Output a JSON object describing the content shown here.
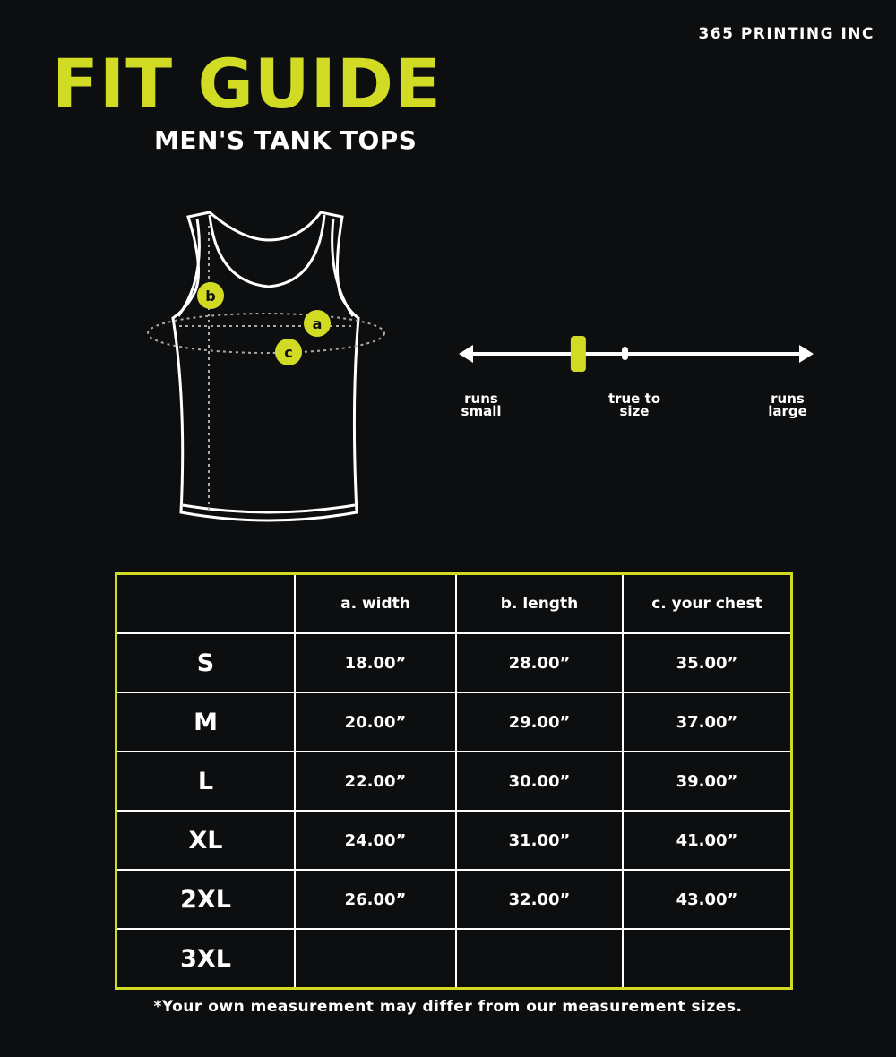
{
  "brand": "365 PRINTING INC",
  "title": "FIT GUIDE",
  "subtitle": "MEN'S TANK TOPS",
  "colors": {
    "accent": "#d1db24",
    "background": "#0c0e0f",
    "line": "#ffffff"
  },
  "diagram": {
    "markers": [
      "a",
      "b",
      "c"
    ]
  },
  "fit_scale": {
    "labels": {
      "small": [
        "runs",
        "small"
      ],
      "true": [
        "true to",
        "size"
      ],
      "large": [
        "runs",
        "large"
      ]
    },
    "fit_position_fraction": 0.33
  },
  "table": {
    "headers": [
      "",
      "a. width",
      "b. length",
      "c. your chest"
    ],
    "rows": [
      [
        "S",
        "18.00”",
        "28.00”",
        "35.00”"
      ],
      [
        "M",
        "20.00”",
        "29.00”",
        "37.00”"
      ],
      [
        "L",
        "22.00”",
        "30.00”",
        "39.00”"
      ],
      [
        "XL",
        "24.00”",
        "31.00”",
        "41.00”"
      ],
      [
        "2XL",
        "26.00”",
        "32.00”",
        "43.00”"
      ],
      [
        "3XL",
        "",
        "",
        ""
      ]
    ]
  },
  "footnote": "*Your own measurement may differ from our measurement sizes."
}
